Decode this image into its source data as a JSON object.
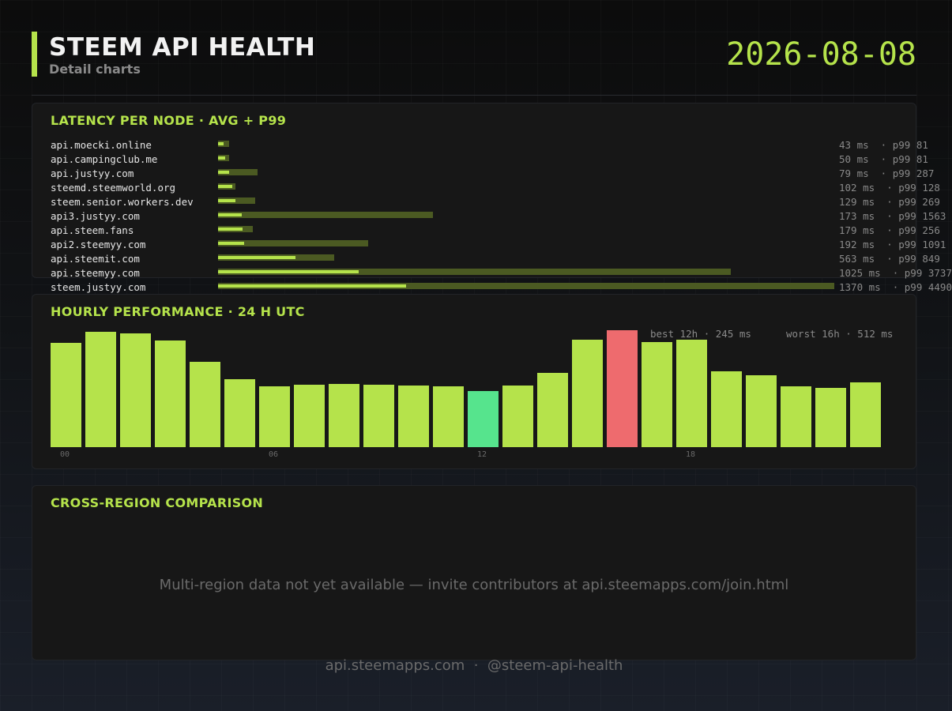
{
  "header": {
    "title": "STEEM API HEALTH",
    "subtitle": "Detail charts",
    "date": "2026-08-08"
  },
  "colors": {
    "accent": "#b5e34b",
    "p99_bar": "#4b5a22",
    "best": "#56e48d",
    "worst": "#ee6b6e"
  },
  "latency_panel": {
    "title": "LATENCY PER NODE  ·  AVG + P99"
  },
  "hourly_panel": {
    "title": "HOURLY PERFORMANCE  ·  24 H UTC",
    "best_label": "best 12h · 245 ms",
    "worst_label": "worst 16h · 512 ms"
  },
  "region_panel": {
    "title": "CROSS-REGION COMPARISON",
    "message": "Multi-region data not yet available — invite contributors at api.steemapps.com/join.html"
  },
  "footer": {
    "text": "api.steemapps.com  ·  @steem-api-health"
  },
  "chart_data": [
    {
      "type": "bar",
      "orientation": "horizontal",
      "title": "LATENCY PER NODE  ·  AVG + P99",
      "unit": "ms",
      "categories": [
        "api.moecki.online",
        "api.campingclub.me",
        "api.justyy.com",
        "steemd.steemworld.org",
        "steem.senior.workers.dev",
        "api3.justyy.com",
        "api.steem.fans",
        "api2.steemyy.com",
        "api.steemit.com",
        "api.steemyy.com",
        "steem.justyy.com"
      ],
      "series": [
        {
          "name": "avg",
          "values": [
            43,
            50,
            79,
            102,
            129,
            173,
            179,
            192,
            563,
            1025,
            1370
          ]
        },
        {
          "name": "p99",
          "values": [
            81,
            81,
            287,
            128,
            269,
            1563,
            256,
            1091,
            849,
            3737,
            4490
          ]
        }
      ],
      "value_labels": [
        "43 ms  · p99 81",
        "50 ms  · p99 81",
        "79 ms  · p99 287",
        "102 ms  · p99 128",
        "129 ms  · p99 269",
        "173 ms  · p99 1563",
        "179 ms  · p99 256",
        "192 ms  · p99 1091",
        "563 ms  · p99 849",
        "1025 ms  · p99 3737",
        "1370 ms  · p99 4490"
      ],
      "xlim": [
        0,
        4490
      ]
    },
    {
      "type": "bar",
      "title": "HOURLY PERFORMANCE  ·  24 H UTC",
      "unit": "ms",
      "x": [
        0,
        1,
        2,
        3,
        4,
        5,
        6,
        7,
        8,
        9,
        10,
        11,
        12,
        13,
        14,
        15,
        16,
        17,
        18,
        19,
        20,
        21,
        22,
        23
      ],
      "values": [
        457,
        506,
        497,
        468,
        372,
        297,
        267,
        274,
        278,
        274,
        271,
        267,
        245,
        271,
        324,
        471,
        512,
        461,
        469,
        333,
        316,
        266,
        260,
        284
      ],
      "tick_labels": [
        "00",
        "06",
        "12",
        "18"
      ],
      "tick_hours": [
        0,
        6,
        12,
        18
      ],
      "best_hour": 12,
      "worst_hour": 16,
      "ylim": [
        0,
        512
      ]
    }
  ]
}
